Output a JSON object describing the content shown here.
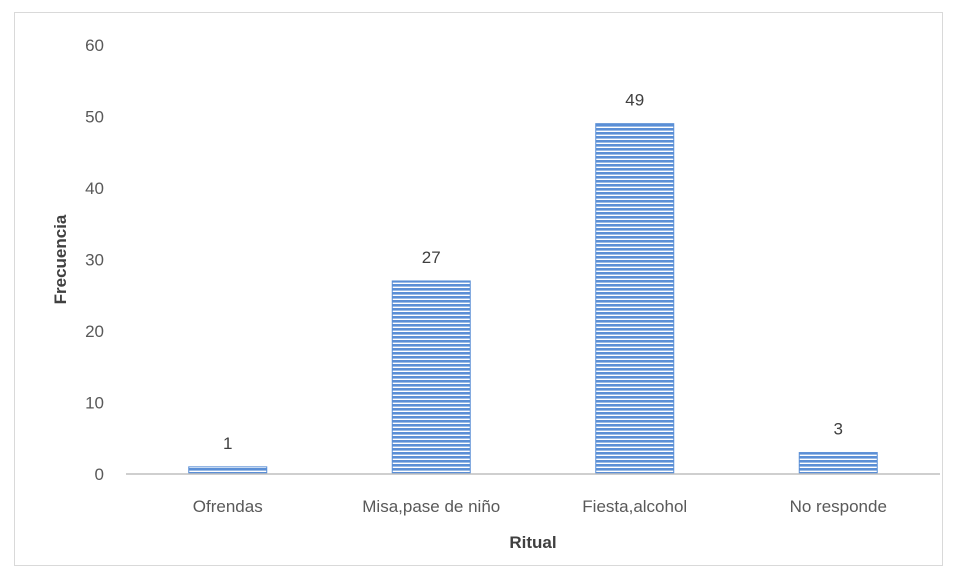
{
  "chart_data": {
    "type": "bar",
    "title": "",
    "xlabel": "Ritual",
    "ylabel": "Frecuencia",
    "categories": [
      "Ofrendas",
      "Misa,pase de niño",
      "Fiesta,alcohol",
      "No responde"
    ],
    "values": [
      1,
      27,
      49,
      3
    ],
    "data_labels": [
      "1",
      "27",
      "49",
      "3"
    ],
    "ylim": [
      0,
      60
    ],
    "yticks": [
      "0",
      "10",
      "20",
      "30",
      "40",
      "50",
      "60"
    ],
    "grid": false,
    "legend": "none",
    "bar_color": "#5b8fd6",
    "bar_stripe_color": "#ffffff"
  }
}
